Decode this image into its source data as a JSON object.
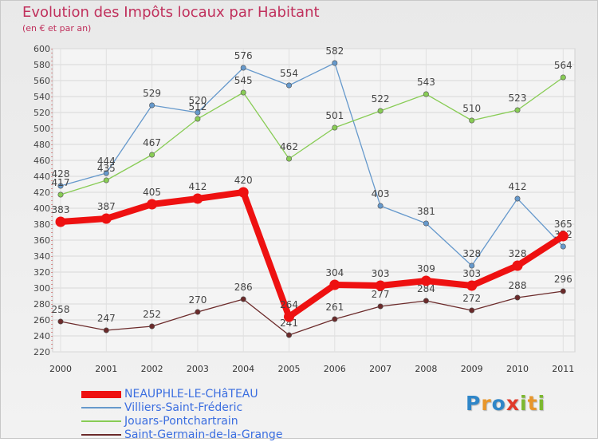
{
  "title": "Evolution des Impôts locaux par Habitant",
  "subtitle": "(en € et par an)",
  "logo": {
    "letters": [
      {
        "ch": "P",
        "color": "#2f86c8"
      },
      {
        "ch": "r",
        "color": "#e8962a"
      },
      {
        "ch": "o",
        "color": "#2f86c8"
      },
      {
        "ch": "x",
        "color": "#e03a2a"
      },
      {
        "ch": "i",
        "color": "#7cb82f"
      },
      {
        "ch": "t",
        "color": "#e8962a"
      },
      {
        "ch": "i",
        "color": "#7cb82f"
      }
    ]
  },
  "chart_data": {
    "type": "line",
    "title": "Evolution des Impôts locaux par Habitant",
    "subtitle": "(en € et par an)",
    "x": [
      "2000",
      "2001",
      "2002",
      "2003",
      "2004",
      "2005",
      "2006",
      "2007",
      "2008",
      "2009",
      "2010",
      "2011"
    ],
    "ylim": [
      220,
      600
    ],
    "ystep": 20,
    "yticks": [
      "220",
      "240",
      "260",
      "280",
      "300",
      "320",
      "340",
      "360",
      "380",
      "400",
      "420",
      "440",
      "460",
      "480",
      "500",
      "520",
      "540",
      "560",
      "580",
      "600"
    ],
    "grid": true,
    "legend_position": "bottom-left",
    "series": [
      {
        "name": "NEAUPHLE-LE-CHâTEAU",
        "color": "#ee1111",
        "emphasis": true,
        "values": [
          383,
          387,
          405,
          412,
          420,
          264,
          304,
          303,
          309,
          303,
          328,
          365
        ]
      },
      {
        "name": "Villiers-Saint-Fréderic",
        "color": "#6699cc",
        "emphasis": false,
        "values": [
          428,
          444,
          529,
          520,
          576,
          554,
          582,
          403,
          381,
          328,
          412,
          352
        ]
      },
      {
        "name": "Jouars-Pontchartrain",
        "color": "#88cc55",
        "emphasis": false,
        "values": [
          417,
          435,
          467,
          512,
          545,
          462,
          501,
          522,
          543,
          510,
          523,
          564
        ]
      },
      {
        "name": "Saint-Germain-de-la-Grange",
        "color": "#6b2a2a",
        "emphasis": false,
        "values": [
          258,
          247,
          252,
          270,
          286,
          241,
          261,
          277,
          284,
          272,
          288,
          296
        ]
      }
    ]
  }
}
